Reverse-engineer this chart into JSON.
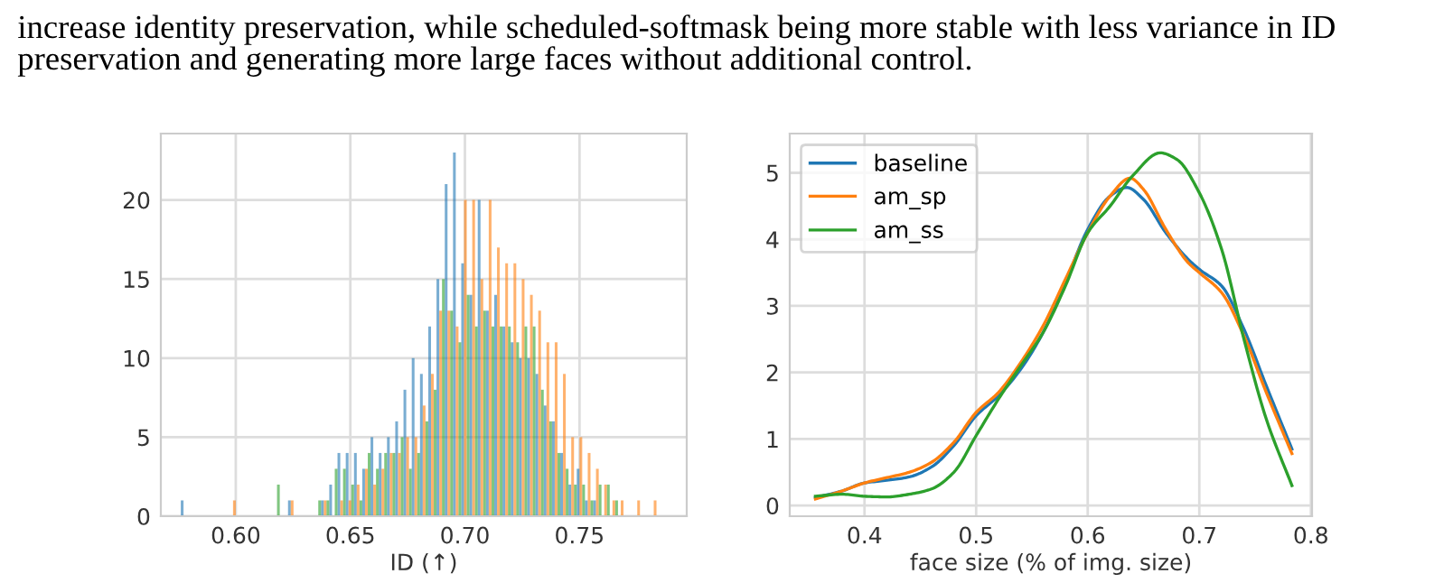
{
  "chart_data": [
    {
      "type": "histogram",
      "xlabel": "ID (↑)",
      "annotations": [
        "increase identity preservation, while scheduled-softmask being more stable with less variance in ID preservation and generating more large faces without additional control."
      ],
      "bins": [
        0.576,
        0.5796,
        0.5832,
        0.5868,
        0.5904,
        0.594,
        0.5976,
        0.6012,
        0.6048,
        0.6084,
        0.612,
        0.6156,
        0.6192,
        0.6228,
        0.6264,
        0.63,
        0.6336,
        0.6372,
        0.6408,
        0.6444,
        0.648,
        0.6516,
        0.6552,
        0.6588,
        0.6624,
        0.666,
        0.6696,
        0.6732,
        0.6768,
        0.6804,
        0.684,
        0.6876,
        0.6912,
        0.6948,
        0.6984,
        0.702,
        0.7056,
        0.7092,
        0.7128,
        0.7164,
        0.72,
        0.7236,
        0.7272,
        0.7308,
        0.7344,
        0.738,
        0.7416,
        0.7452,
        0.7488,
        0.7524,
        0.756,
        0.7596,
        0.7632,
        0.7668,
        0.7704,
        0.774,
        0.7776,
        0.7812,
        0.7848,
        0.7884,
        0.792
      ],
      "series": [
        {
          "color": "#1f77b4",
          "values": [
            1,
            0,
            0,
            0,
            0,
            0,
            0,
            0,
            0,
            0,
            0,
            0,
            0,
            1,
            0,
            0,
            0,
            1,
            2,
            4,
            4,
            4,
            3,
            5,
            4,
            5,
            6,
            8,
            10,
            9,
            12,
            15,
            21,
            23,
            16,
            14,
            20,
            13,
            14,
            12,
            11,
            10,
            10,
            9,
            7,
            6,
            4,
            2,
            3,
            1,
            1,
            0,
            0,
            0,
            0,
            0,
            0,
            0,
            0,
            0
          ]
        },
        {
          "color": "#ff7f0e",
          "values": [
            0,
            0,
            0,
            0,
            0,
            0,
            1,
            0,
            0,
            0,
            0,
            0,
            0,
            1,
            0,
            0,
            0,
            1,
            0,
            1,
            1,
            2,
            3,
            2,
            3,
            4,
            4,
            5,
            5,
            7,
            9,
            13,
            13,
            12,
            20,
            20,
            15,
            20,
            17,
            16,
            16,
            15,
            14,
            13,
            11,
            11,
            9,
            5,
            5,
            4,
            3,
            2,
            1,
            1,
            0,
            1,
            0,
            1,
            0,
            0
          ]
        },
        {
          "color": "#2ca02c",
          "values": [
            0,
            0,
            0,
            0,
            0,
            0,
            0,
            0,
            0,
            0,
            0,
            2,
            0,
            0,
            0,
            0,
            1,
            1,
            3,
            3,
            2,
            1,
            4,
            3,
            4,
            4,
            5,
            3,
            4,
            6,
            8,
            15,
            13,
            11,
            14,
            12,
            13,
            12,
            12,
            12,
            11,
            12,
            12,
            8,
            6,
            4,
            3,
            2,
            2,
            1,
            2,
            2,
            1,
            0,
            0,
            0,
            0,
            0,
            0,
            0
          ]
        }
      ],
      "xlim": [
        0.5673,
        0.7968
      ],
      "ylim": [
        0,
        24.2
      ],
      "xticks": [
        {
          "value": 0.6,
          "label": "0.60"
        },
        {
          "value": 0.65,
          "label": "0.65"
        },
        {
          "value": 0.7,
          "label": "0.70"
        },
        {
          "value": 0.75,
          "label": "0.75"
        }
      ],
      "yticks": [
        0,
        5,
        10,
        15,
        20
      ],
      "grid": true
    },
    {
      "type": "line",
      "xlabel": "face size (% of img. size)",
      "series": [
        {
          "name": "baseline",
          "color": "#1f77b4",
          "x": [
            0.356,
            0.38,
            0.4,
            0.42,
            0.44,
            0.46,
            0.48,
            0.5,
            0.52,
            0.54,
            0.56,
            0.58,
            0.6,
            0.62,
            0.635,
            0.65,
            0.67,
            0.69,
            0.7,
            0.72,
            0.74,
            0.76,
            0.783
          ],
          "values": [
            0.12,
            0.22,
            0.34,
            0.38,
            0.43,
            0.58,
            0.9,
            1.35,
            1.65,
            2.05,
            2.6,
            3.35,
            4.15,
            4.65,
            4.78,
            4.6,
            4.1,
            3.7,
            3.55,
            3.3,
            2.65,
            1.8,
            0.85
          ]
        },
        {
          "name": "am_sp",
          "color": "#ff7f0e",
          "x": [
            0.356,
            0.38,
            0.4,
            0.42,
            0.44,
            0.46,
            0.48,
            0.5,
            0.52,
            0.54,
            0.56,
            0.58,
            0.6,
            0.62,
            0.638,
            0.65,
            0.67,
            0.69,
            0.7,
            0.72,
            0.74,
            0.76,
            0.783
          ],
          "values": [
            0.1,
            0.22,
            0.34,
            0.42,
            0.5,
            0.65,
            0.95,
            1.4,
            1.7,
            2.15,
            2.7,
            3.4,
            4.1,
            4.65,
            4.92,
            4.75,
            4.15,
            3.65,
            3.5,
            3.2,
            2.55,
            1.7,
            0.78
          ]
        },
        {
          "name": "am_ss",
          "color": "#2ca02c",
          "x": [
            0.356,
            0.38,
            0.4,
            0.42,
            0.44,
            0.46,
            0.48,
            0.5,
            0.52,
            0.54,
            0.56,
            0.58,
            0.6,
            0.62,
            0.64,
            0.665,
            0.68,
            0.7,
            0.72,
            0.74,
            0.76,
            0.783
          ],
          "values": [
            0.14,
            0.17,
            0.14,
            0.13,
            0.17,
            0.25,
            0.5,
            1.05,
            1.6,
            2.1,
            2.6,
            3.3,
            4.1,
            4.5,
            4.95,
            5.3,
            5.2,
            4.7,
            3.85,
            2.5,
            1.3,
            0.3
          ]
        }
      ],
      "xlim": [
        0.333,
        0.801
      ],
      "ylim": [
        -0.16,
        5.59
      ],
      "xticks": [
        0.4,
        0.5,
        0.6,
        0.7,
        0.8
      ],
      "yticks": [
        0,
        1,
        2,
        3,
        4,
        5
      ],
      "grid": true,
      "legend": "top left"
    }
  ]
}
